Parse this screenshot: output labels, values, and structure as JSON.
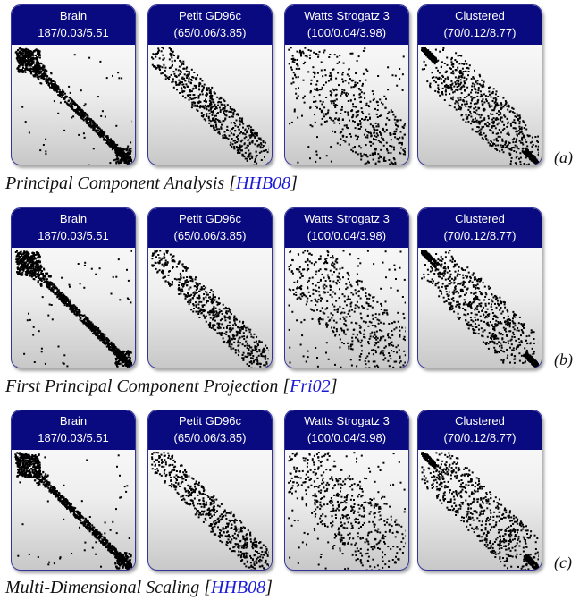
{
  "panels": [
    {
      "tag": "(a)",
      "caption": "Principal Component Analysis [",
      "citation": "HHB08",
      "caption_end": "]"
    },
    {
      "tag": "(b)",
      "caption": "First Principal Component Projection [",
      "citation": "Fri02",
      "caption_end": "]"
    },
    {
      "tag": "(c)",
      "caption": "Multi-Dimensional Scaling [",
      "citation": "HHB08",
      "caption_end": "]"
    }
  ],
  "graphs": [
    {
      "name": "Brain",
      "stats": "187/0.03/5.51"
    },
    {
      "name": "Petit GD96c",
      "stats": "(65/0.06/3.85)"
    },
    {
      "name": "Watts Strogatz 3",
      "stats": "(100/0.04/3.98)"
    },
    {
      "name": "Clustered",
      "stats": "(70/0.12/8.77)"
    }
  ],
  "colors": {
    "header": "#0a0a80",
    "dot": "#000000",
    "citation": "#1a1ad6"
  }
}
